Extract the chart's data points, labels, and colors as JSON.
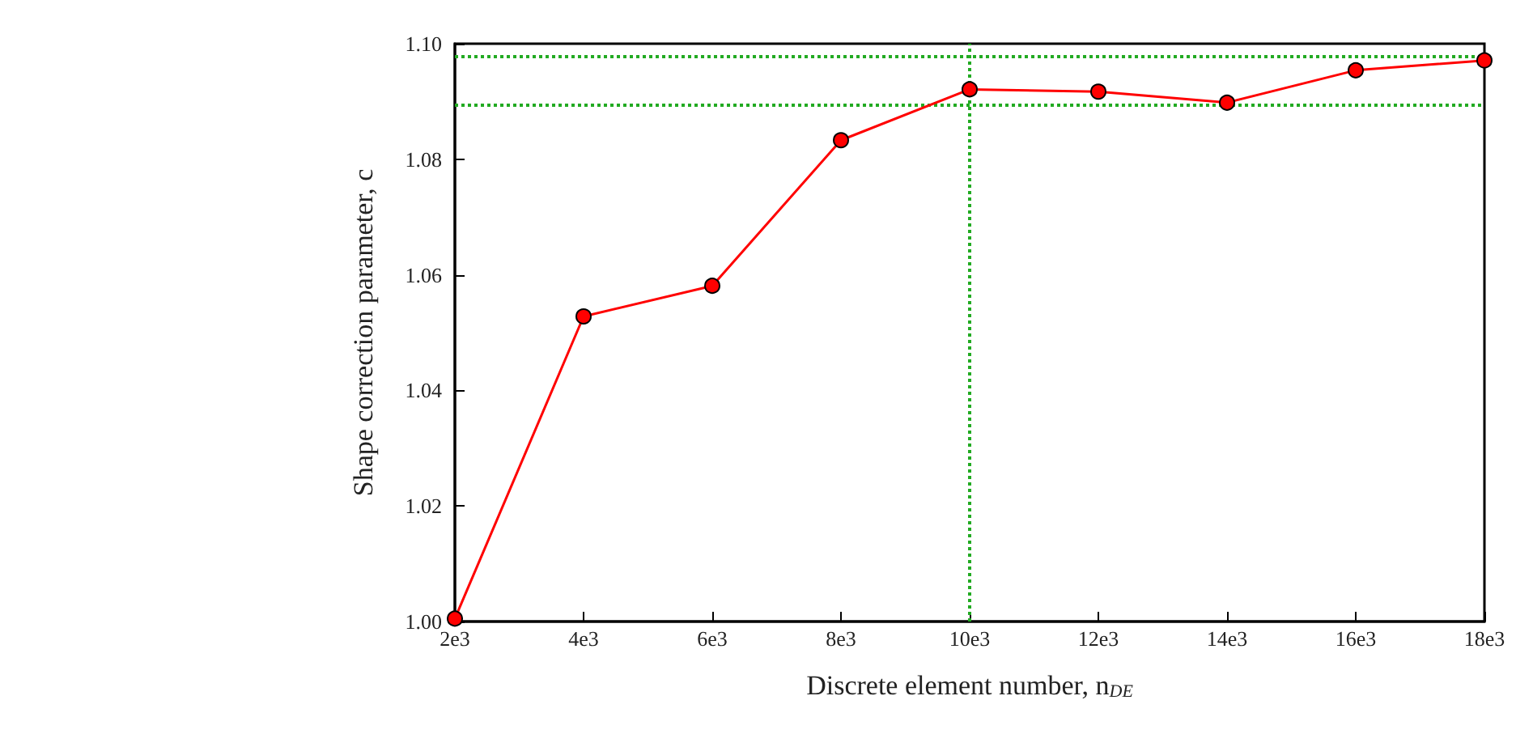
{
  "chart_data": {
    "type": "line",
    "xlabel": "Discrete element number, n$_{DE}$",
    "ylabel": "Shape correction parameter, c",
    "x": [
      2000,
      4000,
      6000,
      8000,
      10000,
      12000,
      14000,
      16000,
      18000
    ],
    "series": [
      {
        "color": "#ff0000",
        "values": [
          1.0005,
          1.0528,
          1.0581,
          1.0833,
          1.0921,
          1.0917,
          1.0898,
          1.0954,
          1.0971
        ]
      }
    ],
    "xlim": [
      2000,
      18000
    ],
    "xticks": [
      {
        "value": 2000,
        "label": "2e3"
      },
      {
        "value": 4000,
        "label": "4e3"
      },
      {
        "value": 6000,
        "label": "6e3"
      },
      {
        "value": 8000,
        "label": "8e3"
      },
      {
        "value": 10000,
        "label": "10e3"
      },
      {
        "value": 12000,
        "label": "12e3"
      },
      {
        "value": 14000,
        "label": "14e3"
      },
      {
        "value": 16000,
        "label": "16e3"
      },
      {
        "value": 18000,
        "label": "18e3"
      }
    ],
    "ylim": [
      1.0,
      1.1
    ],
    "yticks": [
      {
        "value": 1.0,
        "label": "1.00"
      },
      {
        "value": 1.02,
        "label": "1.02"
      },
      {
        "value": 1.04,
        "label": "1.04"
      },
      {
        "value": 1.06,
        "label": "1.06"
      },
      {
        "value": 1.08,
        "label": "1.08"
      },
      {
        "value": 1.1,
        "label": "1.10"
      }
    ],
    "ref_lines": [
      {
        "axis": "y",
        "value": 1.0979,
        "color": "#22aa22",
        "line_style": "dotted"
      },
      {
        "axis": "y",
        "value": 1.0893,
        "color": "#22aa22",
        "line_style": "dotted"
      },
      {
        "axis": "x",
        "value": 10000,
        "color": "#22aa22",
        "line_style": "dotted"
      }
    ],
    "marker": "circle",
    "line_style": "solid",
    "grid": false
  }
}
